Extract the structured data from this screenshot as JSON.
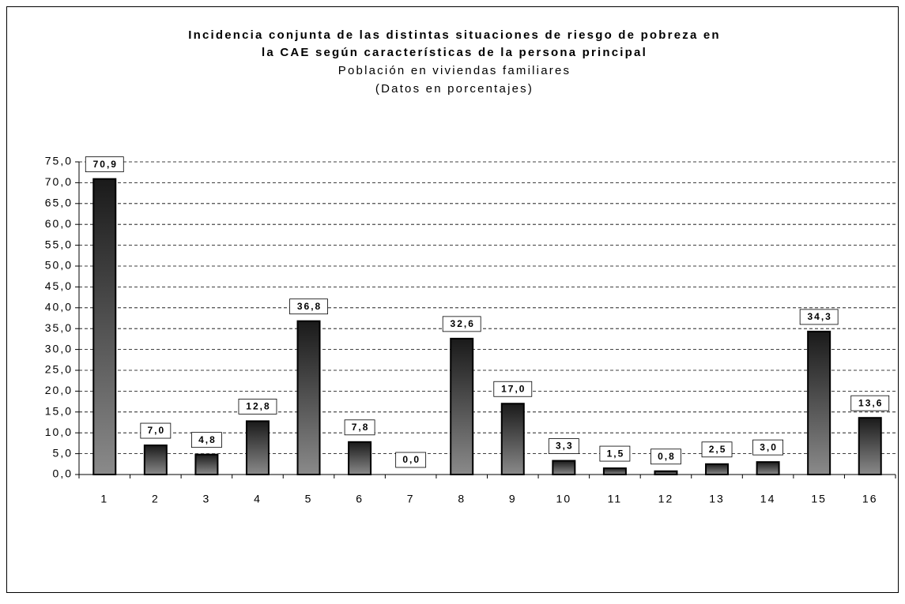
{
  "chart_data": {
    "type": "bar",
    "title": "Incidencia conjunta de las distintas situaciones de riesgo de pobreza en",
    "title_line2": "la CAE según características de la persona principal",
    "subtitle": "Población en viviendas familiares",
    "subtitle_line2": "(Datos en porcentajes)",
    "categories": [
      "1",
      "2",
      "3",
      "4",
      "5",
      "6",
      "7",
      "8",
      "9",
      "10",
      "11",
      "12",
      "13",
      "14",
      "15",
      "16"
    ],
    "values": [
      70.9,
      7.0,
      4.8,
      12.8,
      36.8,
      7.8,
      0.0,
      32.6,
      17.0,
      3.3,
      1.5,
      0.8,
      2.5,
      3.0,
      34.3,
      13.6
    ],
    "value_labels": [
      "70,9",
      "7,0",
      "4,8",
      "12,8",
      "36,8",
      "7,8",
      "0,0",
      "32,6",
      "17,0",
      "3,3",
      "1,5",
      "0,8",
      "2,5",
      "3,0",
      "34,3",
      "13,6"
    ],
    "color": "#1a1a1a",
    "ylim": [
      0,
      75
    ],
    "yticks": [
      {
        "value": 0,
        "label": "0,0"
      },
      {
        "value": 5,
        "label": "5,0"
      },
      {
        "value": 10,
        "label": "10,0"
      },
      {
        "value": 15,
        "label": "15,0"
      },
      {
        "value": 20,
        "label": "20,0"
      },
      {
        "value": 25,
        "label": "25,0"
      },
      {
        "value": 30,
        "label": "30,0"
      },
      {
        "value": 35,
        "label": "35,0"
      },
      {
        "value": 40,
        "label": "40,0"
      },
      {
        "value": 45,
        "label": "45,0"
      },
      {
        "value": 50,
        "label": "50,0"
      },
      {
        "value": 55,
        "label": "55,0"
      },
      {
        "value": 60,
        "label": "60,0"
      },
      {
        "value": 65,
        "label": "65,0"
      },
      {
        "value": 70,
        "label": "70,0"
      },
      {
        "value": 75,
        "label": "75,0"
      }
    ],
    "grid": true
  }
}
